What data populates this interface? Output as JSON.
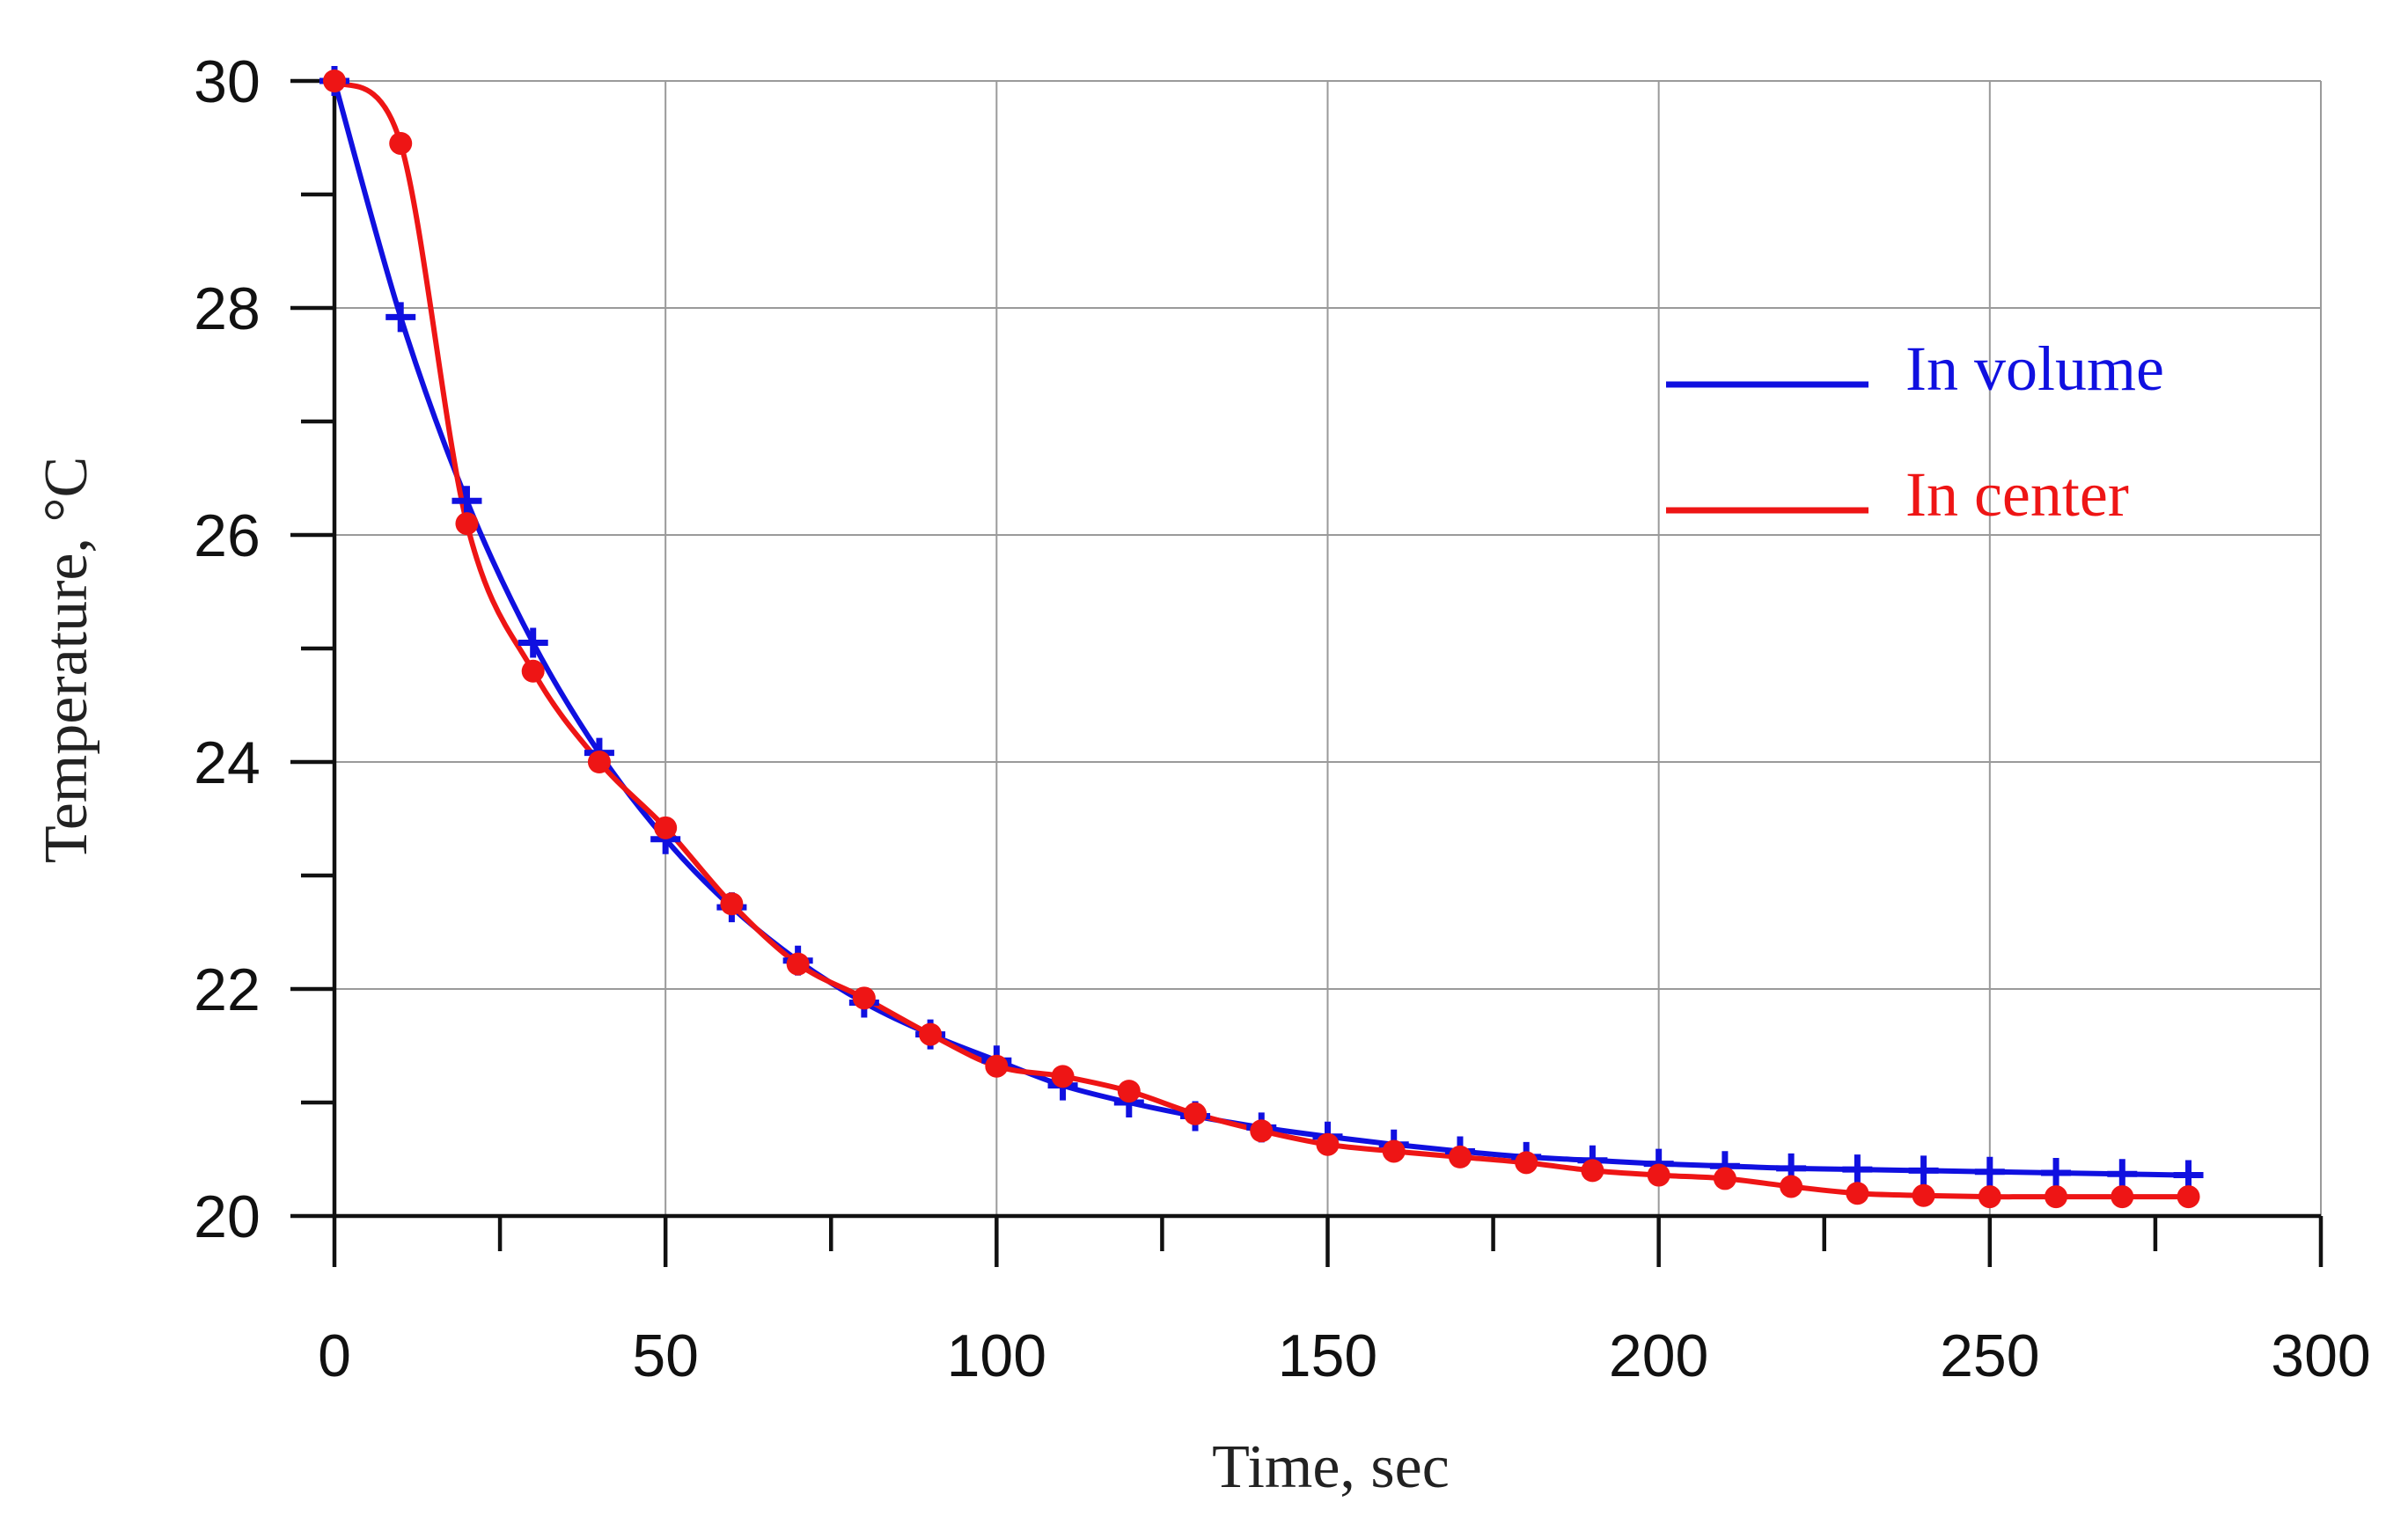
{
  "chart_data": {
    "type": "line",
    "title": "",
    "xlabel": "Time, sec",
    "ylabel": "Temperature, °C",
    "xlim": [
      0,
      300
    ],
    "ylim": [
      20,
      30
    ],
    "xticks": [
      0,
      50,
      100,
      150,
      200,
      250,
      300
    ],
    "yticks": [
      20,
      22,
      24,
      26,
      28,
      30
    ],
    "grid": true,
    "legend_position": "top-right",
    "series": [
      {
        "name": "In volume",
        "color": "#1010e0",
        "marker": "plus",
        "x": [
          0,
          10,
          20,
          30,
          40,
          50,
          60,
          70,
          80,
          90,
          100,
          110,
          120,
          130,
          140,
          150,
          160,
          170,
          180,
          190,
          200,
          210,
          220,
          230,
          240,
          250,
          260,
          270,
          280
        ],
        "y": [
          30.0,
          27.92,
          26.3,
          25.05,
          24.08,
          23.32,
          22.72,
          22.25,
          21.88,
          21.6,
          21.37,
          21.15,
          21.0,
          20.88,
          20.78,
          20.7,
          20.63,
          20.57,
          20.52,
          20.49,
          20.46,
          20.44,
          20.42,
          20.41,
          20.4,
          20.39,
          20.38,
          20.37,
          20.36
        ]
      },
      {
        "name": "In center",
        "color": "#ee1515",
        "marker": "circle",
        "x": [
          0,
          10,
          20,
          30,
          40,
          50,
          60,
          70,
          80,
          90,
          100,
          110,
          120,
          130,
          140,
          150,
          160,
          170,
          180,
          190,
          200,
          210,
          220,
          230,
          240,
          250,
          260,
          270,
          280
        ],
        "y": [
          30.0,
          29.45,
          26.1,
          24.8,
          24.0,
          23.42,
          22.75,
          22.22,
          21.92,
          21.6,
          21.32,
          21.23,
          21.1,
          20.9,
          20.75,
          20.63,
          20.57,
          20.52,
          20.47,
          20.4,
          20.36,
          20.33,
          20.26,
          20.2,
          20.18,
          20.17,
          20.17,
          20.17,
          20.17
        ]
      }
    ]
  }
}
